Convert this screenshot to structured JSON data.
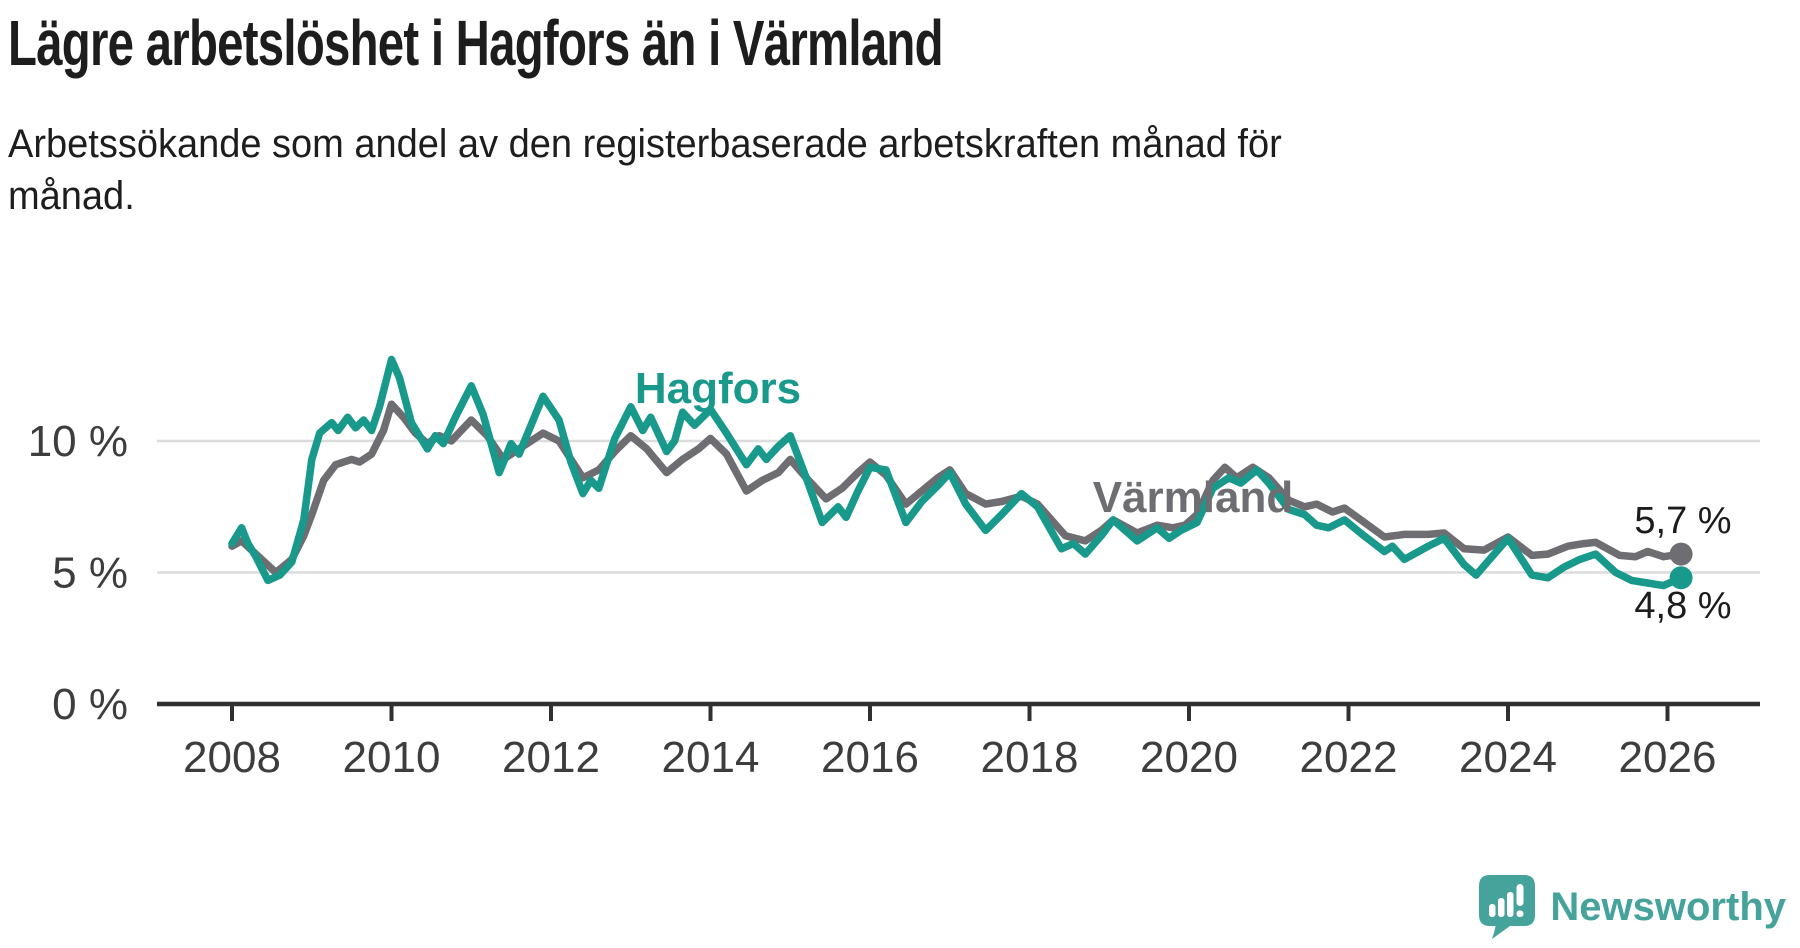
{
  "header": {
    "title": "Lägre arbetslöshet i Hagfors än i Värmland",
    "subtitle_lines": [
      "Arbetssökande som andel av den registerbaserade arbetskraften månad för",
      "månad."
    ]
  },
  "chart_data": {
    "type": "line",
    "title": "Lägre arbetslöshet i Hagfors än i Värmland",
    "xlabel": "",
    "ylabel": "Arbetssökande som andel av den registerbaserade arbetskraften",
    "unit": "%",
    "grid": "horizontal",
    "x_axis": {
      "tick_years": [
        2008,
        2010,
        2012,
        2014,
        2016,
        2018,
        2020,
        2022,
        2024,
        2026
      ],
      "tick_labels": [
        "2008",
        "2010",
        "2012",
        "2014",
        "2016",
        "2018",
        "2020",
        "2022",
        "2024",
        "2026"
      ],
      "range": [
        2007.1,
        2027.1
      ]
    },
    "y_axis": {
      "ticks": [
        {
          "value": 0,
          "label": "0 %"
        },
        {
          "value": 5,
          "label": "5 %"
        },
        {
          "value": 10,
          "label": "10 %"
        }
      ],
      "range": [
        0,
        13.8
      ]
    },
    "colors": {
      "hagfors": "#18998b",
      "varmland": "#6e6e72",
      "gridline": "#dcdcdc",
      "axis": "#303030",
      "text": "#3d3d3d"
    },
    "series": [
      {
        "name": "Värmland",
        "color": "#6e6e72",
        "end_label": "5,7 %",
        "end_value": 5.7,
        "points": [
          [
            2008.0,
            6.0
          ],
          [
            2008.12,
            6.2
          ],
          [
            2008.3,
            5.7
          ],
          [
            2008.55,
            5.0
          ],
          [
            2008.75,
            5.5
          ],
          [
            2008.9,
            6.4
          ],
          [
            2009.0,
            7.2
          ],
          [
            2009.15,
            8.5
          ],
          [
            2009.3,
            9.1
          ],
          [
            2009.5,
            9.3
          ],
          [
            2009.6,
            9.2
          ],
          [
            2009.75,
            9.5
          ],
          [
            2009.9,
            10.4
          ],
          [
            2010.0,
            11.4
          ],
          [
            2010.15,
            10.9
          ],
          [
            2010.3,
            10.3
          ],
          [
            2010.45,
            9.9
          ],
          [
            2010.6,
            10.2
          ],
          [
            2010.75,
            10.0
          ],
          [
            2011.0,
            10.8
          ],
          [
            2011.2,
            10.2
          ],
          [
            2011.4,
            9.3
          ],
          [
            2011.6,
            9.7
          ],
          [
            2011.9,
            10.3
          ],
          [
            2012.1,
            10.0
          ],
          [
            2012.4,
            8.6
          ],
          [
            2012.6,
            8.9
          ],
          [
            2012.8,
            9.6
          ],
          [
            2013.0,
            10.2
          ],
          [
            2013.2,
            9.7
          ],
          [
            2013.45,
            8.8
          ],
          [
            2013.65,
            9.3
          ],
          [
            2013.85,
            9.7
          ],
          [
            2014.0,
            10.1
          ],
          [
            2014.2,
            9.5
          ],
          [
            2014.45,
            8.1
          ],
          [
            2014.65,
            8.5
          ],
          [
            2014.85,
            8.8
          ],
          [
            2015.0,
            9.3
          ],
          [
            2015.2,
            8.6
          ],
          [
            2015.45,
            7.8
          ],
          [
            2015.65,
            8.2
          ],
          [
            2015.85,
            8.8
          ],
          [
            2016.0,
            9.2
          ],
          [
            2016.2,
            8.7
          ],
          [
            2016.45,
            7.6
          ],
          [
            2016.65,
            8.1
          ],
          [
            2016.85,
            8.6
          ],
          [
            2017.0,
            8.9
          ],
          [
            2017.2,
            8.0
          ],
          [
            2017.45,
            7.6
          ],
          [
            2017.65,
            7.7
          ],
          [
            2017.9,
            7.9
          ],
          [
            2018.1,
            7.6
          ],
          [
            2018.45,
            6.4
          ],
          [
            2018.7,
            6.2
          ],
          [
            2018.9,
            6.6
          ],
          [
            2019.05,
            7.0
          ],
          [
            2019.35,
            6.5
          ],
          [
            2019.6,
            6.8
          ],
          [
            2019.8,
            6.7
          ],
          [
            2019.95,
            6.8
          ],
          [
            2020.1,
            7.2
          ],
          [
            2020.3,
            8.5
          ],
          [
            2020.45,
            9.0
          ],
          [
            2020.6,
            8.6
          ],
          [
            2020.8,
            9.0
          ],
          [
            2021.0,
            8.6
          ],
          [
            2021.25,
            7.75
          ],
          [
            2021.45,
            7.5
          ],
          [
            2021.6,
            7.6
          ],
          [
            2021.8,
            7.3
          ],
          [
            2021.95,
            7.45
          ],
          [
            2022.2,
            6.9
          ],
          [
            2022.45,
            6.35
          ],
          [
            2022.7,
            6.45
          ],
          [
            2023.0,
            6.45
          ],
          [
            2023.2,
            6.5
          ],
          [
            2023.45,
            5.9
          ],
          [
            2023.7,
            5.85
          ],
          [
            2024.0,
            6.35
          ],
          [
            2024.3,
            5.65
          ],
          [
            2024.5,
            5.7
          ],
          [
            2024.75,
            6.0
          ],
          [
            2024.95,
            6.1
          ],
          [
            2025.1,
            6.15
          ],
          [
            2025.4,
            5.65
          ],
          [
            2025.6,
            5.6
          ],
          [
            2025.75,
            5.8
          ],
          [
            2025.95,
            5.6
          ],
          [
            2026.17,
            5.7
          ]
        ]
      },
      {
        "name": "Hagfors",
        "color": "#18998b",
        "end_label": "4,8 %",
        "end_value": 4.8,
        "points": [
          [
            2008.0,
            6.1
          ],
          [
            2008.12,
            6.7
          ],
          [
            2008.2,
            6.1
          ],
          [
            2008.3,
            5.6
          ],
          [
            2008.45,
            4.7
          ],
          [
            2008.6,
            4.9
          ],
          [
            2008.75,
            5.4
          ],
          [
            2008.9,
            7.0
          ],
          [
            2009.0,
            9.3
          ],
          [
            2009.1,
            10.3
          ],
          [
            2009.25,
            10.7
          ],
          [
            2009.33,
            10.4
          ],
          [
            2009.45,
            10.9
          ],
          [
            2009.55,
            10.5
          ],
          [
            2009.65,
            10.8
          ],
          [
            2009.75,
            10.4
          ],
          [
            2009.85,
            11.3
          ],
          [
            2010.0,
            13.1
          ],
          [
            2010.1,
            12.4
          ],
          [
            2010.25,
            10.7
          ],
          [
            2010.45,
            9.7
          ],
          [
            2010.55,
            10.2
          ],
          [
            2010.65,
            9.9
          ],
          [
            2010.8,
            10.9
          ],
          [
            2011.0,
            12.1
          ],
          [
            2011.15,
            11.0
          ],
          [
            2011.35,
            8.8
          ],
          [
            2011.5,
            9.9
          ],
          [
            2011.6,
            9.5
          ],
          [
            2011.9,
            11.7
          ],
          [
            2012.1,
            10.8
          ],
          [
            2012.25,
            9.2
          ],
          [
            2012.4,
            8.0
          ],
          [
            2012.5,
            8.5
          ],
          [
            2012.6,
            8.2
          ],
          [
            2012.8,
            10.1
          ],
          [
            2013.0,
            11.3
          ],
          [
            2013.15,
            10.4
          ],
          [
            2013.25,
            10.9
          ],
          [
            2013.45,
            9.6
          ],
          [
            2013.55,
            10.0
          ],
          [
            2013.65,
            11.1
          ],
          [
            2013.8,
            10.6
          ],
          [
            2014.0,
            11.2
          ],
          [
            2014.2,
            10.3
          ],
          [
            2014.45,
            9.1
          ],
          [
            2014.6,
            9.7
          ],
          [
            2014.7,
            9.3
          ],
          [
            2014.85,
            9.8
          ],
          [
            2015.0,
            10.2
          ],
          [
            2015.2,
            8.6
          ],
          [
            2015.4,
            6.9
          ],
          [
            2015.6,
            7.5
          ],
          [
            2015.7,
            7.1
          ],
          [
            2015.85,
            8.1
          ],
          [
            2016.0,
            9.0
          ],
          [
            2016.2,
            8.9
          ],
          [
            2016.45,
            6.9
          ],
          [
            2016.65,
            7.7
          ],
          [
            2016.85,
            8.3
          ],
          [
            2017.0,
            8.8
          ],
          [
            2017.2,
            7.6
          ],
          [
            2017.45,
            6.6
          ],
          [
            2017.65,
            7.2
          ],
          [
            2017.9,
            8.0
          ],
          [
            2018.1,
            7.5
          ],
          [
            2018.4,
            5.9
          ],
          [
            2018.55,
            6.1
          ],
          [
            2018.7,
            5.7
          ],
          [
            2018.9,
            6.4
          ],
          [
            2019.05,
            7.0
          ],
          [
            2019.35,
            6.2
          ],
          [
            2019.6,
            6.7
          ],
          [
            2019.75,
            6.3
          ],
          [
            2019.9,
            6.6
          ],
          [
            2020.1,
            6.9
          ],
          [
            2020.3,
            8.2
          ],
          [
            2020.5,
            8.6
          ],
          [
            2020.65,
            8.4
          ],
          [
            2020.85,
            8.9
          ],
          [
            2021.0,
            8.4
          ],
          [
            2021.25,
            7.4
          ],
          [
            2021.45,
            7.2
          ],
          [
            2021.6,
            6.8
          ],
          [
            2021.75,
            6.7
          ],
          [
            2021.95,
            7.0
          ],
          [
            2022.15,
            6.5
          ],
          [
            2022.45,
            5.8
          ],
          [
            2022.55,
            6.0
          ],
          [
            2022.7,
            5.5
          ],
          [
            2023.0,
            6.0
          ],
          [
            2023.2,
            6.3
          ],
          [
            2023.45,
            5.3
          ],
          [
            2023.6,
            4.9
          ],
          [
            2023.8,
            5.6
          ],
          [
            2024.0,
            6.3
          ],
          [
            2024.3,
            4.9
          ],
          [
            2024.5,
            4.8
          ],
          [
            2024.7,
            5.2
          ],
          [
            2024.9,
            5.5
          ],
          [
            2025.1,
            5.7
          ],
          [
            2025.35,
            5.0
          ],
          [
            2025.55,
            4.7
          ],
          [
            2025.75,
            4.6
          ],
          [
            2025.95,
            4.5
          ],
          [
            2026.17,
            4.8
          ]
        ]
      }
    ],
    "annotations": [
      {
        "series": "Hagfors",
        "text": "Hagfors"
      },
      {
        "series": "Värmland",
        "text": "Värmland"
      }
    ],
    "legend_position": "inline-labels"
  },
  "footer": {
    "brand": "Newsworthy",
    "logo_icon": "speech-bubble-bar-chart-exclamation",
    "brand_color": "#45a39c"
  }
}
